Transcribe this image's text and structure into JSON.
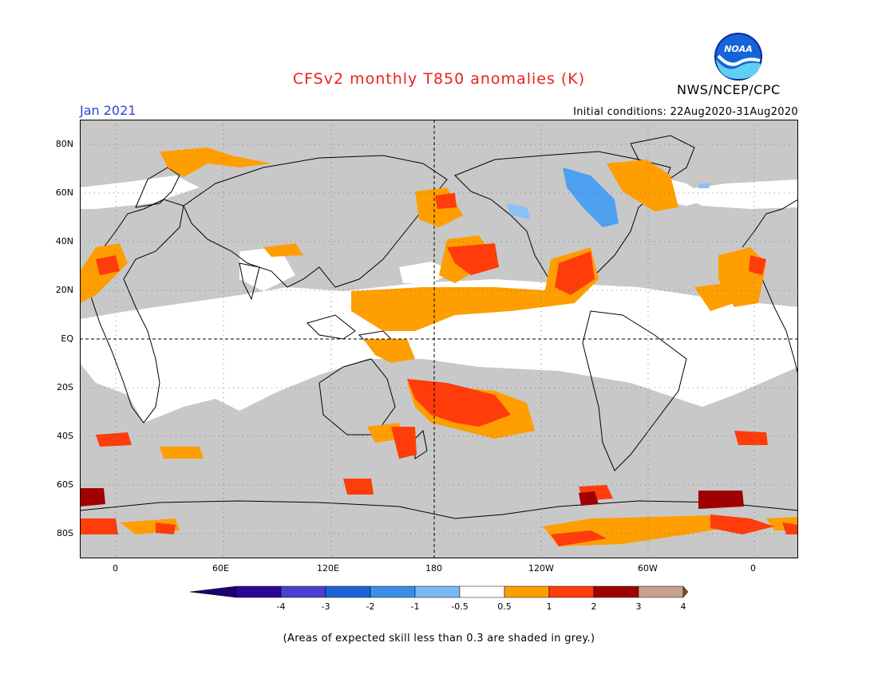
{
  "header": {
    "title": "CFSv2 monthly T850 anomalies (K)",
    "organization": "NWS/NCEP/CPC",
    "month": "Jan 2021",
    "initial_conditions": "Initial conditions: 22Aug2020-31Aug2020",
    "logo_text": "NOAA"
  },
  "map": {
    "lat_labels": [
      "80N",
      "60N",
      "40N",
      "20N",
      "EQ",
      "20S",
      "40S",
      "60S",
      "80S"
    ],
    "lon_labels": [
      "0",
      "60E",
      "120E",
      "180",
      "120W",
      "60W",
      "0"
    ],
    "colors": {
      "grey_mask": "#c8c8c8",
      "ocean_neutral": "#ffffff",
      "anom_0_5_1": "#ff9e00",
      "anom_1_2": "#ff3c0a",
      "anom_2_3": "#a00000",
      "anom_neg_1_0_5": "#4ea0f0",
      "anom_neg_0_5_neg_1": "#8cc0f5"
    }
  },
  "colorbar": {
    "labels": [
      "-4",
      "-3",
      "-2",
      "-1",
      "-0.5",
      "0.5",
      "1",
      "2",
      "3",
      "4"
    ],
    "colors": [
      "#2a0896",
      "#4a3fd0",
      "#1b62d4",
      "#3a8ee8",
      "#7ab8f2",
      "#ffffff",
      "#ff9e00",
      "#ff3c0a",
      "#a00000",
      "#c8a090"
    ],
    "end_low": "#1c006e",
    "end_high": "#7a4a3a"
  },
  "footnote": "(Areas of expected skill less than 0.3 are shaded in grey.)"
}
